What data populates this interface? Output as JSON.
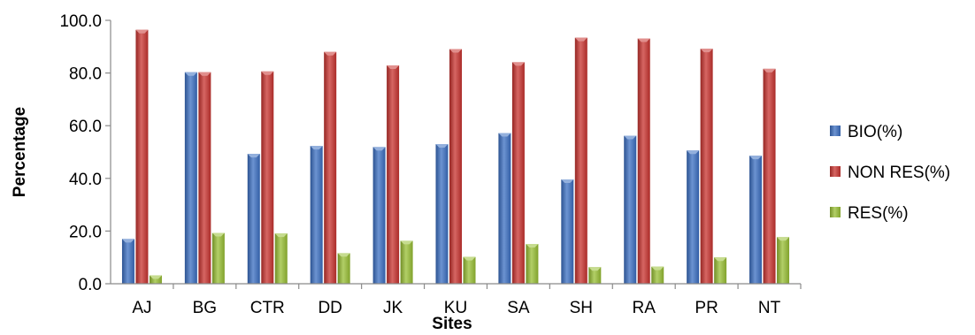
{
  "chart_data": {
    "type": "bar",
    "title": "",
    "xlabel": "Sites",
    "ylabel": "Percentage",
    "categories": [
      "AJ",
      "BG",
      "CTR",
      "DD",
      "JK",
      "KU",
      "SA",
      "SH",
      "RA",
      "PR",
      "NT"
    ],
    "series": [
      {
        "name": "BIO(%)",
        "color": "#3b6fc2",
        "values": [
          17.0,
          80.3,
          49.3,
          52.3,
          51.9,
          53.0,
          57.2,
          39.6,
          56.2,
          50.6,
          48.6
        ]
      },
      {
        "name": "NON RES(%)",
        "color": "#c8332f",
        "values": [
          96.4,
          80.3,
          80.6,
          88.0,
          82.9,
          89.1,
          84.1,
          93.4,
          93.1,
          89.2,
          81.6
        ]
      },
      {
        "name": "RES(%)",
        "color": "#98bf34",
        "values": [
          3.2,
          19.3,
          19.1,
          11.6,
          16.3,
          10.2,
          15.1,
          6.3,
          6.5,
          10.0,
          17.7
        ]
      }
    ],
    "yticks": [
      "0.0",
      "20.0",
      "40.0",
      "60.0",
      "80.0",
      "100.0"
    ],
    "ylim": [
      0,
      100
    ],
    "grid": false,
    "legend_position": "right"
  }
}
